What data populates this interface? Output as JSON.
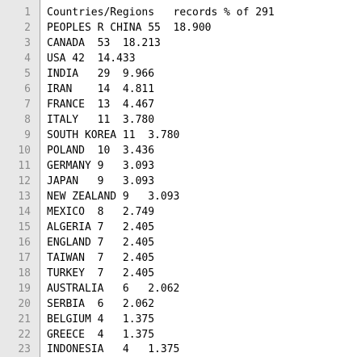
{
  "editor": {
    "lines": [
      {
        "num": "1",
        "text": "Countries/Regions   records % of 291"
      },
      {
        "num": "2",
        "text": "PEOPLES R CHINA 55  18.900"
      },
      {
        "num": "3",
        "text": "CANADA  53  18.213"
      },
      {
        "num": "4",
        "text": "USA 42  14.433"
      },
      {
        "num": "5",
        "text": "INDIA   29  9.966"
      },
      {
        "num": "6",
        "text": "IRAN    14  4.811"
      },
      {
        "num": "7",
        "text": "FRANCE  13  4.467"
      },
      {
        "num": "8",
        "text": "ITALY   11  3.780"
      },
      {
        "num": "9",
        "text": "SOUTH KOREA 11  3.780"
      },
      {
        "num": "10",
        "text": "POLAND  10  3.436"
      },
      {
        "num": "11",
        "text": "GERMANY 9   3.093"
      },
      {
        "num": "12",
        "text": "JAPAN   9   3.093"
      },
      {
        "num": "13",
        "text": "NEW ZEALAND 9   3.093"
      },
      {
        "num": "14",
        "text": "MEXICO  8   2.749"
      },
      {
        "num": "15",
        "text": "ALGERIA 7   2.405"
      },
      {
        "num": "16",
        "text": "ENGLAND 7   2.405"
      },
      {
        "num": "17",
        "text": "TAIWAN  7   2.405"
      },
      {
        "num": "18",
        "text": "TURKEY  7   2.405"
      },
      {
        "num": "19",
        "text": "AUSTRALIA   6   2.062"
      },
      {
        "num": "20",
        "text": "SERBIA  6   2.062"
      },
      {
        "num": "21",
        "text": "BELGIUM 4   1.375"
      },
      {
        "num": "22",
        "text": "GREECE  4   1.375"
      },
      {
        "num": "23",
        "text": "INDONESIA   4   1.375"
      }
    ]
  }
}
